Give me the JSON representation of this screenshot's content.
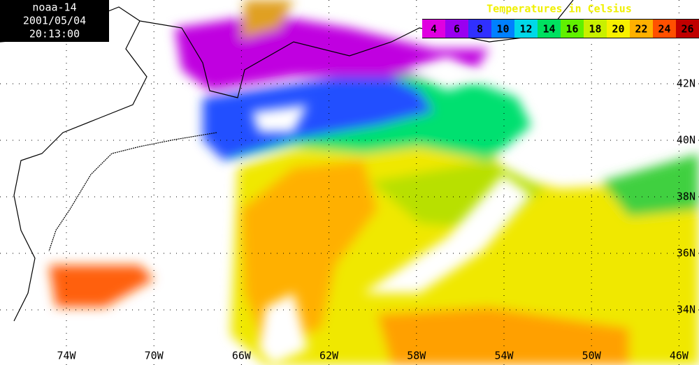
{
  "header": {
    "satellite": "noaa-14",
    "date": "2001/05/04",
    "time": "20:13:00"
  },
  "legend": {
    "title": "Temperatures in Celsius",
    "ticks": [
      4,
      6,
      8,
      10,
      12,
      14,
      16,
      18,
      20,
      22,
      24,
      26
    ],
    "colors": [
      "#e000e0",
      "#9a00f0",
      "#3030ff",
      "#0080ff",
      "#00d8e8",
      "#00e060",
      "#60f000",
      "#c8f000",
      "#f8f000",
      "#ffb000",
      "#ff5000",
      "#c00000"
    ]
  },
  "latitudes": [
    {
      "value": 42,
      "label": "42N"
    },
    {
      "value": 40,
      "label": "40N"
    },
    {
      "value": 38,
      "label": "38N"
    },
    {
      "value": 36,
      "label": "36N"
    },
    {
      "value": 34,
      "label": "34N"
    }
  ],
  "longitudes": [
    {
      "value": 74,
      "label": "74W"
    },
    {
      "value": 70,
      "label": "70W"
    },
    {
      "value": 66,
      "label": "66W"
    },
    {
      "value": 62,
      "label": "62W"
    },
    {
      "value": 58,
      "label": "58W"
    },
    {
      "value": 54,
      "label": "54W"
    },
    {
      "value": 50,
      "label": "50W"
    },
    {
      "value": 46,
      "label": "46W"
    }
  ]
}
